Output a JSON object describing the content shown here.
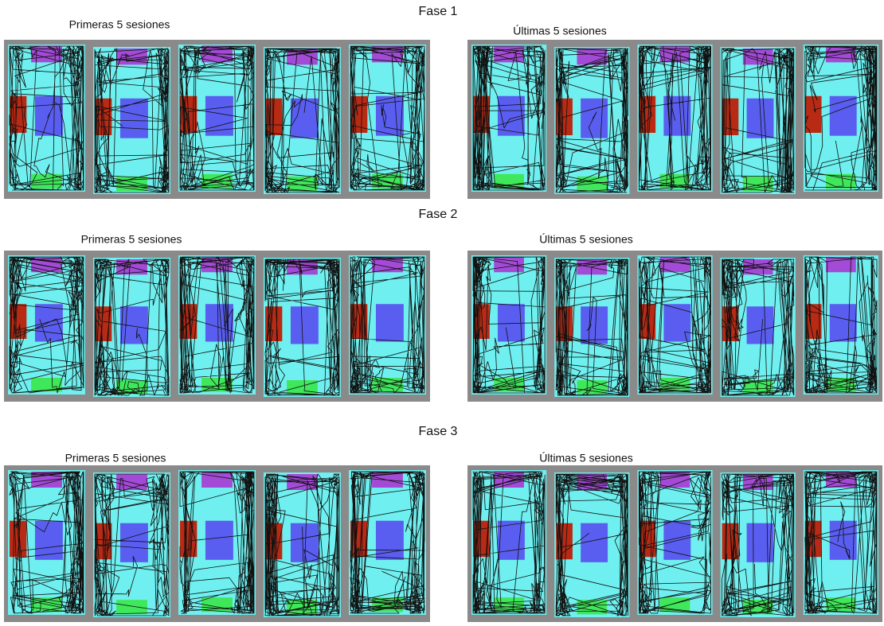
{
  "phases": [
    {
      "title": "Fase 1",
      "groups": [
        {
          "label": "Primeras 5 sesiones"
        },
        {
          "label": "Últimas 5 sesiones"
        }
      ]
    },
    {
      "title": "Fase 2",
      "groups": [
        {
          "label": "Primeras 5 sesiones"
        },
        {
          "label": "Últimas 5 sesiones"
        }
      ]
    },
    {
      "title": "Fase 3",
      "groups": [
        {
          "label": "Primeras 5 sesiones"
        },
        {
          "label": "Últimas 5 sesiones"
        }
      ]
    }
  ]
}
